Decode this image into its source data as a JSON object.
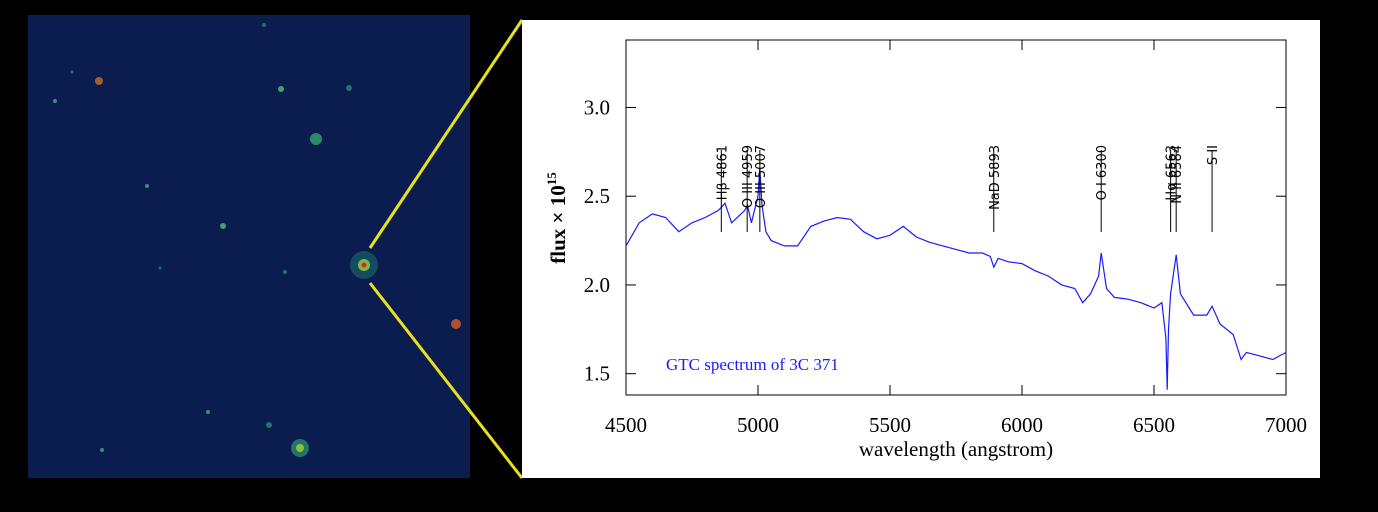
{
  "chart_data": {
    "type": "line",
    "caption": "GTC spectrum of 3C 371",
    "x_label": "wavelength (angstrom)",
    "y_label": "flux × 10",
    "y_label_exponent": "15",
    "xlim": [
      4500,
      7000
    ],
    "xticks": [
      4500,
      5000,
      5500,
      6000,
      6500,
      7000
    ],
    "ylim": [
      1.38,
      3.38
    ],
    "yticks": [
      1.5,
      {
        "value": 2,
        "label": "2.0"
      },
      2.5,
      {
        "value": 3,
        "label": "3.0"
      }
    ],
    "annotations": [
      {
        "label": "Hβ 4861",
        "x": 4861
      },
      {
        "label": "O III 4959",
        "x": 4959
      },
      {
        "label": "O III 5007",
        "x": 5007
      },
      {
        "label": "NaD 5893",
        "x": 5893
      },
      {
        "label": "O I 6300",
        "x": 6300
      },
      {
        "label": "Hα 6563",
        "x": 6563
      },
      {
        "label": "N II 6584",
        "x": 6584
      },
      {
        "label": "S II",
        "x": 6720
      }
    ],
    "series": [
      {
        "color": "#1a1aff",
        "x": [
          4500,
          4550,
          4600,
          4650,
          4700,
          4750,
          4800,
          4850,
          4875,
          4900,
          4950,
          4960,
          4975,
          5000,
          5007,
          5015,
          5030,
          5050,
          5100,
          5150,
          5200,
          5250,
          5300,
          5350,
          5400,
          5450,
          5500,
          5550,
          5600,
          5650,
          5700,
          5750,
          5800,
          5850,
          5880,
          5893,
          5910,
          5950,
          6000,
          6050,
          6100,
          6150,
          6200,
          6230,
          6260,
          6290,
          6300,
          6320,
          6350,
          6400,
          6450,
          6500,
          6530,
          6545,
          6550,
          6555,
          6563,
          6584,
          6600,
          6650,
          6700,
          6720,
          6750,
          6800,
          6830,
          6850,
          6900,
          6950,
          7000
        ],
        "values": [
          2.22,
          2.35,
          2.4,
          2.38,
          2.3,
          2.35,
          2.38,
          2.42,
          2.46,
          2.35,
          2.42,
          2.45,
          2.35,
          2.5,
          2.66,
          2.45,
          2.3,
          2.25,
          2.22,
          2.22,
          2.33,
          2.36,
          2.38,
          2.37,
          2.3,
          2.26,
          2.28,
          2.33,
          2.27,
          2.24,
          2.22,
          2.2,
          2.18,
          2.18,
          2.16,
          2.1,
          2.15,
          2.13,
          2.12,
          2.08,
          2.05,
          2.0,
          1.98,
          1.9,
          1.95,
          2.05,
          2.18,
          1.98,
          1.93,
          1.92,
          1.9,
          1.87,
          1.9,
          1.7,
          1.41,
          1.75,
          1.95,
          2.17,
          1.95,
          1.83,
          1.83,
          1.88,
          1.78,
          1.72,
          1.58,
          1.62,
          1.6,
          1.58,
          1.62
        ]
      }
    ]
  }
}
